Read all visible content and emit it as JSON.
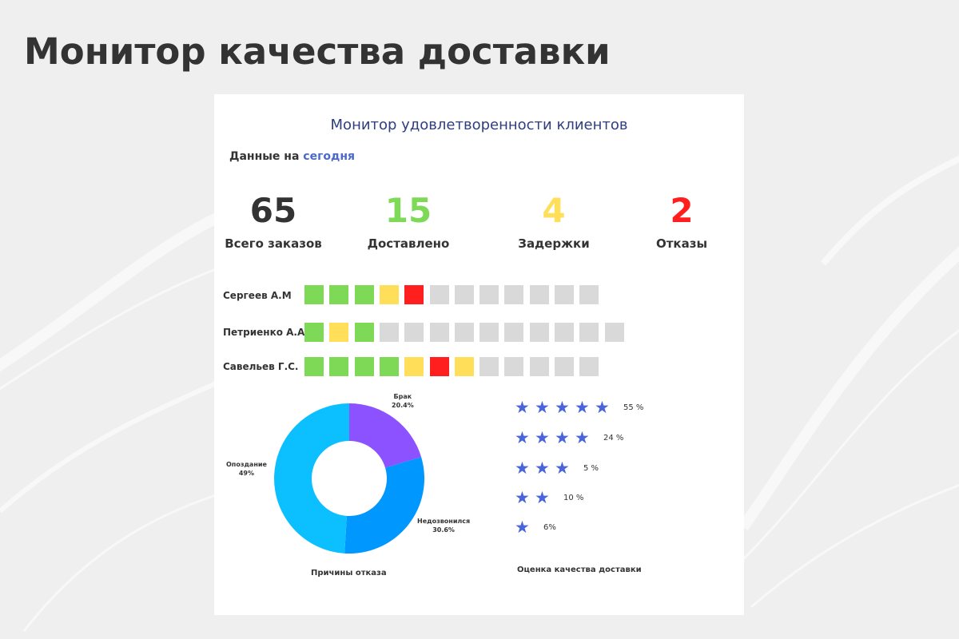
{
  "page_title": "Монитор качества доставки",
  "dashboard": {
    "title": "Монитор удовлетворенности клиентов",
    "as_of_label": "Данные на",
    "as_of_value": "сегодня",
    "kpis": [
      {
        "value": "65",
        "label": "Всего заказов",
        "color": "#333333"
      },
      {
        "value": "15",
        "label": "Доставлено",
        "color": "#7ed957"
      },
      {
        "value": "4",
        "label": "Задержки",
        "color": "#ffde59"
      },
      {
        "value": "2",
        "label": "Отказы",
        "color": "#ff1f1f"
      }
    ],
    "status_colors": {
      "delivered": "#7ed957",
      "delayed": "#ffde59",
      "refused": "#ff1f1f",
      "pending": "#d9d9d9"
    },
    "couriers": [
      {
        "name": "Сергеев А.М",
        "cells": [
          "delivered",
          "delivered",
          "delivered",
          "delayed",
          "refused",
          "pending",
          "pending",
          "pending",
          "pending",
          "pending",
          "pending",
          "pending"
        ]
      },
      {
        "name": "Петриенко А.А",
        "cells": [
          "delivered",
          "delayed",
          "delivered",
          "pending",
          "pending",
          "pending",
          "pending",
          "pending",
          "pending",
          "pending",
          "pending",
          "pending",
          "pending"
        ]
      },
      {
        "name": "Савельев Г.С.",
        "cells": [
          "delivered",
          "delivered",
          "delivered",
          "delivered",
          "delayed",
          "refused",
          "delayed",
          "pending",
          "pending",
          "pending",
          "pending",
          "pending"
        ]
      }
    ],
    "refusal_reasons": {
      "caption": "Причины отказа",
      "segments": [
        {
          "name": "Брак",
          "value": 20.4,
          "value_label": "20.4%",
          "color": "#8c52ff"
        },
        {
          "name": "Недозвонился",
          "value": 30.6,
          "value_label": "30.6%",
          "color": "#0097ff"
        },
        {
          "name": "Опоздание",
          "value": 49,
          "value_label": "49%",
          "color": "#0cc0ff"
        }
      ]
    },
    "quality_rating": {
      "caption": "Оценка качества доставки",
      "star_color": "#4a64dc",
      "rows": [
        {
          "stars": 5,
          "percent": "55 %"
        },
        {
          "stars": 4,
          "percent": "24 %"
        },
        {
          "stars": 3,
          "percent": "5 %"
        },
        {
          "stars": 2,
          "percent": "10 %"
        },
        {
          "stars": 1,
          "percent": "6%"
        }
      ]
    }
  },
  "chart_data": {
    "type": "pie",
    "title": "Причины отказа",
    "categories": [
      "Брак",
      "Недозвонился",
      "Опоздание"
    ],
    "values": [
      20.4,
      30.6,
      49
    ],
    "colors": [
      "#8c52ff",
      "#0097ff",
      "#0cc0ff"
    ],
    "donut": true
  }
}
